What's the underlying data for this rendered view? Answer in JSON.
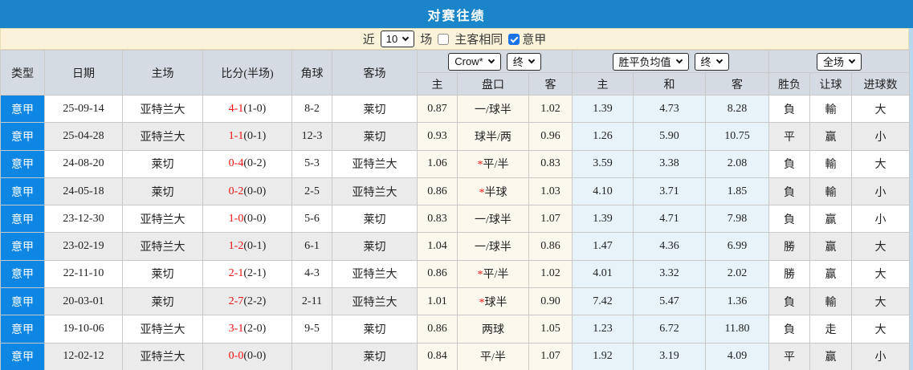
{
  "title_bar": {
    "title": "对赛往绩"
  },
  "filter": {
    "near_label": "近",
    "recent_count": "10",
    "games_label": "场",
    "same_venue_label": "主客相同",
    "same_venue_checked": false,
    "league_label": "意甲",
    "league_checked": true
  },
  "table": {
    "headers": {
      "type": "类型",
      "date": "日期",
      "home": "主场",
      "score": "比分(半场)",
      "corner": "角球",
      "away": "客场"
    },
    "odds_group": {
      "bookmaker": "Crow*",
      "period": "终",
      "home": "主",
      "handicap": "盘口",
      "away": "客"
    },
    "avg_group": {
      "label": "胜平负均值",
      "period": "终",
      "home": "主",
      "draw": "和",
      "away": "客"
    },
    "full_group": {
      "label": "全场",
      "result": "胜负",
      "handicap": "让球",
      "goals": "进球数"
    }
  },
  "colors": {
    "title_bar_bg": "#1a86c9",
    "league_cell_bg": "#0e86e4",
    "filter_bar_bg": "#faf3da",
    "header_bg": "#d5dbe3",
    "odds_col_bg": "#fcf8ee",
    "avg_col_bg": "#e8f3f9",
    "stripe_gray": "#ebebeb",
    "score_red": "#ee1111",
    "win_red": "#c00000",
    "lose_green": "#008000",
    "draw_blue": "#1414cc",
    "checked_checkbox_blue": "#1a73e8"
  },
  "rows": [
    {
      "league": "意甲",
      "date": "25-09-14",
      "home": "亚特兰大",
      "home_color": "dark",
      "score": "4-1",
      "half": "(1-0)",
      "corner": "8-2",
      "away": "莱切",
      "away_color": "green",
      "odds_home": "0.87",
      "handicap_star": false,
      "handicap": "一/球半",
      "odds_away": "1.02",
      "avg_home": "1.39",
      "avg_draw": "4.73",
      "avg_away": "8.28",
      "result": "負",
      "result_color": "green",
      "let_ball": "輸",
      "let_ball_color": "green",
      "goals": "大",
      "goals_color": "red"
    },
    {
      "league": "意甲",
      "date": "25-04-28",
      "home": "亚特兰大",
      "home_color": "dark",
      "score": "1-1",
      "half": "(0-1)",
      "corner": "12-3",
      "away": "莱切",
      "away_color": "green",
      "odds_home": "0.93",
      "handicap_star": false,
      "handicap": "球半/两",
      "odds_away": "0.96",
      "avg_home": "1.26",
      "avg_draw": "5.90",
      "avg_away": "10.75",
      "result": "平",
      "result_color": "blue",
      "let_ball": "赢",
      "let_ball_color": "red",
      "goals": "小",
      "goals_color": "green"
    },
    {
      "league": "意甲",
      "date": "24-08-20",
      "home": "莱切",
      "home_color": "green",
      "score": "0-4",
      "half": "(0-2)",
      "corner": "5-3",
      "away": "亚特兰大",
      "away_color": "dark",
      "odds_home": "1.06",
      "handicap_star": true,
      "handicap": "平/半",
      "odds_away": "0.83",
      "avg_home": "3.59",
      "avg_draw": "3.38",
      "avg_away": "2.08",
      "result": "負",
      "result_color": "green",
      "let_ball": "輸",
      "let_ball_color": "green",
      "goals": "大",
      "goals_color": "red"
    },
    {
      "league": "意甲",
      "date": "24-05-18",
      "home": "莱切",
      "home_color": "green",
      "score": "0-2",
      "half": "(0-0)",
      "corner": "2-5",
      "away": "亚特兰大",
      "away_color": "dark",
      "odds_home": "0.86",
      "handicap_star": true,
      "handicap": "半球",
      "odds_away": "1.03",
      "avg_home": "4.10",
      "avg_draw": "3.71",
      "avg_away": "1.85",
      "result": "負",
      "result_color": "green",
      "let_ball": "輸",
      "let_ball_color": "green",
      "goals": "小",
      "goals_color": "green"
    },
    {
      "league": "意甲",
      "date": "23-12-30",
      "home": "亚特兰大",
      "home_color": "dark",
      "score": "1-0",
      "half": "(0-0)",
      "corner": "5-6",
      "away": "莱切",
      "away_color": "green",
      "odds_home": "0.83",
      "handicap_star": false,
      "handicap": "一/球半",
      "odds_away": "1.07",
      "avg_home": "1.39",
      "avg_draw": "4.71",
      "avg_away": "7.98",
      "result": "負",
      "result_color": "green",
      "let_ball": "赢",
      "let_ball_color": "red",
      "goals": "小",
      "goals_color": "green"
    },
    {
      "league": "意甲",
      "date": "23-02-19",
      "home": "亚特兰大",
      "home_color": "dark",
      "score": "1-2",
      "half": "(0-1)",
      "corner": "6-1",
      "away": "莱切",
      "away_color": "green",
      "odds_home": "1.04",
      "handicap_star": false,
      "handicap": "一/球半",
      "odds_away": "0.86",
      "avg_home": "1.47",
      "avg_draw": "4.36",
      "avg_away": "6.99",
      "result": "勝",
      "result_color": "red",
      "let_ball": "赢",
      "let_ball_color": "red",
      "goals": "大",
      "goals_color": "red"
    },
    {
      "league": "意甲",
      "date": "22-11-10",
      "home": "莱切",
      "home_color": "green",
      "score": "2-1",
      "half": "(2-1)",
      "corner": "4-3",
      "away": "亚特兰大",
      "away_color": "dark",
      "odds_home": "0.86",
      "handicap_star": true,
      "handicap": "平/半",
      "odds_away": "1.02",
      "avg_home": "4.01",
      "avg_draw": "3.32",
      "avg_away": "2.02",
      "result": "勝",
      "result_color": "red",
      "let_ball": "赢",
      "let_ball_color": "red",
      "goals": "大",
      "goals_color": "red"
    },
    {
      "league": "意甲",
      "date": "20-03-01",
      "home": "莱切",
      "home_color": "green",
      "score": "2-7",
      "half": "(2-2)",
      "corner": "2-11",
      "away": "亚特兰大",
      "away_color": "dark",
      "odds_home": "1.01",
      "handicap_star": true,
      "handicap": "球半",
      "odds_away": "0.90",
      "avg_home": "7.42",
      "avg_draw": "5.47",
      "avg_away": "1.36",
      "result": "負",
      "result_color": "green",
      "let_ball": "輸",
      "let_ball_color": "green",
      "goals": "大",
      "goals_color": "red"
    },
    {
      "league": "意甲",
      "date": "19-10-06",
      "home": "亚特兰大",
      "home_color": "dark",
      "score": "3-1",
      "half": "(2-0)",
      "corner": "9-5",
      "away": "莱切",
      "away_color": "green",
      "odds_home": "0.86",
      "handicap_star": false,
      "handicap": "两球",
      "odds_away": "1.05",
      "avg_home": "1.23",
      "avg_draw": "6.72",
      "avg_away": "11.80",
      "result": "負",
      "result_color": "green",
      "let_ball": "走",
      "let_ball_color": "blue",
      "goals": "大",
      "goals_color": "red"
    },
    {
      "league": "意甲",
      "date": "12-02-12",
      "home": "亚特兰大",
      "home_color": "dark",
      "score": "0-0",
      "half": "(0-0)",
      "corner": "",
      "away": "莱切",
      "away_color": "green",
      "odds_home": "0.84",
      "handicap_star": false,
      "handicap": "平/半",
      "odds_away": "1.07",
      "avg_home": "1.92",
      "avg_draw": "3.19",
      "avg_away": "4.09",
      "result": "平",
      "result_color": "blue",
      "let_ball": "赢",
      "let_ball_color": "red",
      "goals": "小",
      "goals_color": "green"
    }
  ]
}
